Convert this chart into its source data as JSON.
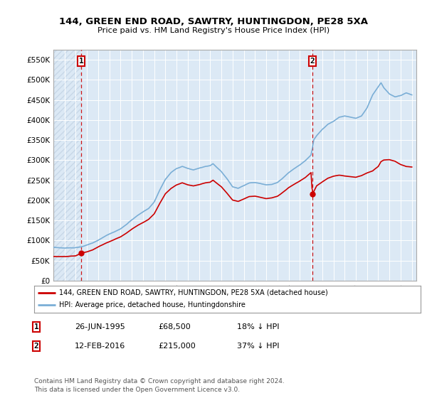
{
  "title": "144, GREEN END ROAD, SAWTRY, HUNTINGDON, PE28 5XA",
  "subtitle": "Price paid vs. HM Land Registry's House Price Index (HPI)",
  "ylabel_ticks": [
    "£0",
    "£50K",
    "£100K",
    "£150K",
    "£200K",
    "£250K",
    "£300K",
    "£350K",
    "£400K",
    "£450K",
    "£500K",
    "£550K"
  ],
  "ytick_values": [
    0,
    50000,
    100000,
    150000,
    200000,
    250000,
    300000,
    350000,
    400000,
    450000,
    500000,
    550000
  ],
  "ylim": [
    0,
    575000
  ],
  "xlim_start": 1993.0,
  "xlim_end": 2025.4,
  "hpi_color": "#7aaed6",
  "price_color": "#cc0000",
  "transaction1_date": 1995.483,
  "transaction1_price": 68500,
  "transaction1_label": "1",
  "transaction2_date": 2016.117,
  "transaction2_price": 215000,
  "transaction2_label": "2",
  "legend_line1": "144, GREEN END ROAD, SAWTRY, HUNTINGDON, PE28 5XA (detached house)",
  "legend_line2": "HPI: Average price, detached house, Huntingdonshire",
  "annotation1_date": "26-JUN-1995",
  "annotation1_price": "£68,500",
  "annotation1_hpi": "18% ↓ HPI",
  "annotation2_date": "12-FEB-2016",
  "annotation2_price": "£215,000",
  "annotation2_hpi": "37% ↓ HPI",
  "footer": "Contains HM Land Registry data © Crown copyright and database right 2024.\nThis data is licensed under the Open Government Licence v3.0.",
  "bg_color": "#dce9f5",
  "grid_color": "#ffffff",
  "hatch_color": "#c8d8e8"
}
